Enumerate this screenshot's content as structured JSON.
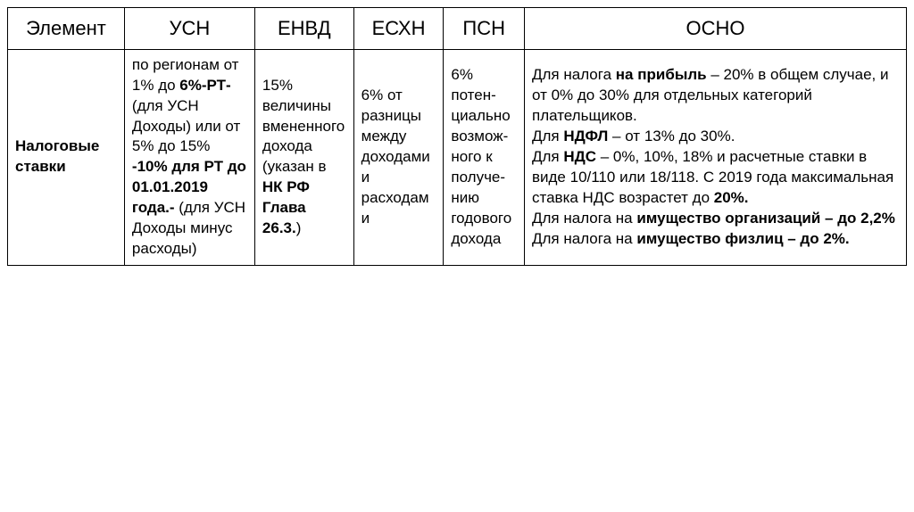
{
  "table": {
    "columns": [
      {
        "label": "Элемент",
        "width": "13%"
      },
      {
        "label": "УСН",
        "width": "14.5%"
      },
      {
        "label": "ЕНВД",
        "width": "11%"
      },
      {
        "label": "ЕСХН",
        "width": "10%"
      },
      {
        "label": "ПСН",
        "width": "9%"
      },
      {
        "label": "ОСНО",
        "width": "42.5%"
      }
    ],
    "row": {
      "label": "Налоговые ставки",
      "usn": {
        "t1": "по регионам от 1% до ",
        "b1": "6%-РТ- ",
        "t2": "(для УСН Доходы) или от 5% до 15% ",
        "b2": "-10% для РТ до 01.01.2019 года.- ",
        "t3": "(для УСН Доходы минус расходы)"
      },
      "envd": {
        "t1": "15% величины вмененного дохода (указан в ",
        "b1": "НК РФ Глава 26.3.",
        "t2": ")"
      },
      "eshn": "6% от разницы между доходами и расходами",
      "psn": "6% потен-циально возмож-ного к получе-нию годового дохода",
      "osno": {
        "t1": "Для налога ",
        "b1": "на прибыль",
        "t2": "  – 20% в общем случае, и от 0% до 30% для отдельных категорий плательщиков.",
        "br1": "",
        "t3": "Для ",
        "b2": "НДФЛ",
        "t4": " – от 13% до 30%.",
        "br2": "",
        "t5": "Для ",
        "b3": "НДС",
        "t6": " – 0%, 10%, 18% и расчетные ставки в виде 10/110 или 18/118. С 2019 года максимальная ставка НДС возрастет до ",
        "b4": "20%.",
        "br3": "",
        "t7": "Для налога на ",
        "b5": "имущество организаций – до 2,2%",
        "br4": "",
        "t8": "Для налога на ",
        "b6": "имущество физлиц – до 2%."
      }
    }
  }
}
